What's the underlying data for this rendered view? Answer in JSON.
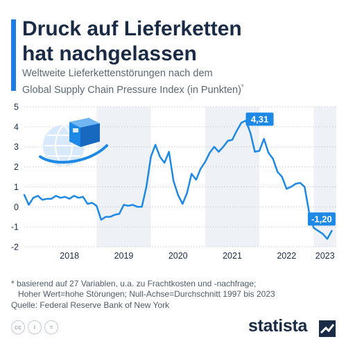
{
  "header": {
    "title_line1": "Druck auf Lieferketten",
    "title_line2": "hat nachgelassen",
    "subtitle_line1": "Weltweite Lieferkettenstörungen nach dem",
    "subtitle_line2": "Global Supply Chain Pressure Index (in Punkten)",
    "subtitle_mark": "*"
  },
  "chart_data": {
    "type": "line",
    "title": "",
    "xlabel": "",
    "ylabel": "",
    "ylim": [
      -2,
      5
    ],
    "y_ticks": [
      "5",
      "4",
      "3",
      "2",
      "1",
      "0",
      "-1",
      "-2"
    ],
    "x_ticks": [
      "2018",
      "2019",
      "2020",
      "2021",
      "2022",
      "2023"
    ],
    "grid": true,
    "legend": "none",
    "line_color": "#1e88e5",
    "band_color": "#eef1f6",
    "series": [
      {
        "x": [
          "2017-09",
          "2017-10",
          "2017-11",
          "2017-12",
          "2018-01",
          "2018-02",
          "2018-03",
          "2018-04",
          "2018-05",
          "2018-06",
          "2018-07",
          "2018-08",
          "2018-09",
          "2018-10",
          "2018-11",
          "2018-12",
          "2019-01",
          "2019-02",
          "2019-03",
          "2019-04",
          "2019-05",
          "2019-06",
          "2019-07",
          "2019-08",
          "2019-09",
          "2019-10",
          "2019-11",
          "2019-12",
          "2020-01",
          "2020-02",
          "2020-03",
          "2020-04",
          "2020-05",
          "2020-06",
          "2020-07",
          "2020-08",
          "2020-09",
          "2020-10",
          "2020-11",
          "2020-12",
          "2021-01",
          "2021-02",
          "2021-03",
          "2021-04",
          "2021-05",
          "2021-06",
          "2021-07",
          "2021-08",
          "2021-09",
          "2021-10",
          "2021-11",
          "2021-12",
          "2022-01",
          "2022-02",
          "2022-03",
          "2022-04",
          "2022-05",
          "2022-06",
          "2022-07",
          "2022-08",
          "2022-09",
          "2022-10",
          "2022-11",
          "2022-12",
          "2023-01",
          "2023-02",
          "2023-03",
          "2023-04",
          "2023-05"
        ],
        "values": [
          0.6,
          0.1,
          0.45,
          0.55,
          0.35,
          0.4,
          0.4,
          0.55,
          0.45,
          0.5,
          0.4,
          0.55,
          0.45,
          0.5,
          0.15,
          0.2,
          0.05,
          -0.65,
          -0.5,
          -0.5,
          -0.4,
          -0.35,
          0.1,
          0.05,
          0.1,
          0.0,
          0.0,
          1.0,
          2.5,
          3.1,
          2.5,
          2.2,
          2.75,
          1.3,
          0.6,
          0.15,
          0.7,
          1.65,
          1.35,
          1.9,
          2.25,
          2.7,
          3.0,
          2.75,
          3.0,
          3.3,
          3.35,
          3.8,
          4.2,
          4.31,
          3.7,
          2.75,
          2.8,
          3.4,
          2.7,
          2.4,
          1.75,
          1.5,
          0.9,
          1.0,
          1.15,
          1.2,
          1.0,
          -0.3,
          -1.05,
          -1.2,
          -1.35,
          -1.6,
          -1.2
        ]
      }
    ],
    "annotations": [
      {
        "label": "4,31",
        "x": "2021-10",
        "value": 4.31
      },
      {
        "label": "-1,20",
        "x": "2023-02",
        "value": -1.2
      }
    ]
  },
  "footnote": {
    "line1": "* basierend auf 27 Variablen, u.a. zu Frachtkosten und -nachfrage;",
    "line2": "Hoher Wert=hohe Störungen; Null-Achse=Durchschnitt 1997 bis 2023"
  },
  "source": "Quelle: Federal Reserve Bank of New York",
  "license_icons": [
    {
      "name": "cc-icon",
      "glyph": "cc"
    },
    {
      "name": "by-icon",
      "glyph": "i"
    },
    {
      "name": "nd-icon",
      "glyph": "="
    }
  ],
  "brand": "statista"
}
